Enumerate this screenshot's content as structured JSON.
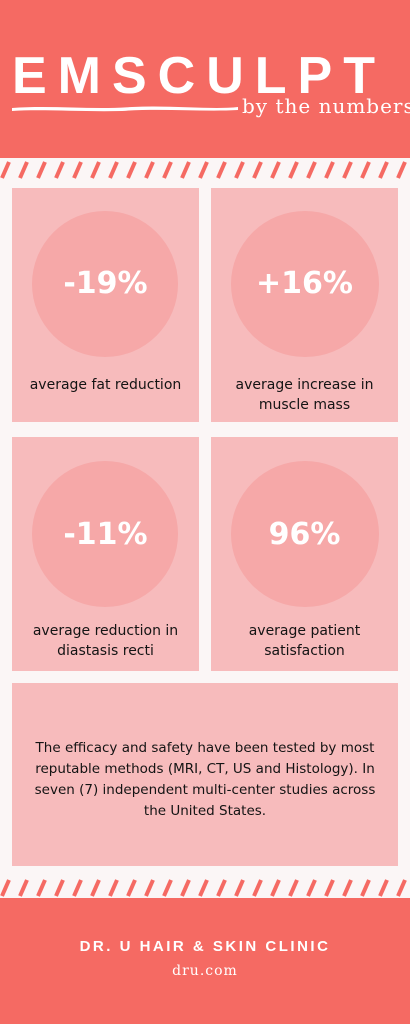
{
  "header": {
    "title": "EMSCULPT",
    "subtitle": "by the numbers"
  },
  "stats": [
    {
      "value": "-19%",
      "label": "average fat reduction"
    },
    {
      "value": "+16%",
      "label": "average increase in muscle mass"
    },
    {
      "value": "-11%",
      "label": "average reduction in diastasis recti"
    },
    {
      "value": "96%",
      "label": "average patient satisfaction"
    }
  ],
  "note": "The efficacy and safety have been tested by most reputable methods (MRI, CT, US and Histology). In seven (7) independent multi-center studies across the United States.",
  "footer": {
    "clinic": "DR. U HAIR & SKIN CLINIC",
    "url": "dru.com"
  },
  "colors": {
    "coral": "#f56a63",
    "card": "#f7bbbc",
    "circle": "#f6a8a8",
    "page": "#fbf6f6"
  }
}
